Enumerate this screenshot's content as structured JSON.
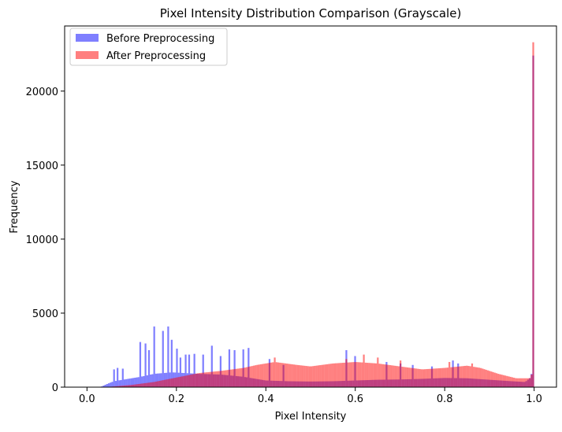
{
  "chart_data": {
    "type": "histogram",
    "title": "Pixel Intensity Distribution Comparison (Grayscale)",
    "xlabel": "Pixel Intensity",
    "ylabel": "Frequency",
    "xlim": [
      -0.05,
      1.05
    ],
    "ylim": [
      0,
      24400
    ],
    "x_ticks": [
      0.0,
      0.2,
      0.4,
      0.6,
      0.8,
      1.0
    ],
    "x_tick_labels": [
      "0.0",
      "0.2",
      "0.4",
      "0.6",
      "0.8",
      "1.0"
    ],
    "y_ticks": [
      0,
      5000,
      10000,
      15000,
      20000
    ],
    "y_tick_labels": [
      "0",
      "5000",
      "10000",
      "15000",
      "20000"
    ],
    "bins": 256,
    "bin_range": [
      0,
      1
    ],
    "legend": {
      "placement": "top-left"
    },
    "grid": false,
    "series": [
      {
        "name": "Before Preprocessing",
        "color": "#0000ff",
        "alpha": 0.5,
        "profile": [
          [
            0.0,
            0
          ],
          [
            0.03,
            0
          ],
          [
            0.04,
            150
          ],
          [
            0.06,
            400
          ],
          [
            0.09,
            550
          ],
          [
            0.12,
            700
          ],
          [
            0.15,
            900
          ],
          [
            0.19,
            1000
          ],
          [
            0.22,
            950
          ],
          [
            0.25,
            900
          ],
          [
            0.3,
            850
          ],
          [
            0.35,
            700
          ],
          [
            0.4,
            450
          ],
          [
            0.45,
            400
          ],
          [
            0.5,
            380
          ],
          [
            0.55,
            400
          ],
          [
            0.6,
            450
          ],
          [
            0.65,
            500
          ],
          [
            0.7,
            520
          ],
          [
            0.75,
            560
          ],
          [
            0.8,
            620
          ],
          [
            0.85,
            600
          ],
          [
            0.9,
            500
          ],
          [
            0.95,
            400
          ],
          [
            0.98,
            350
          ],
          [
            0.992,
            650
          ],
          [
            0.996,
            1100
          ]
        ],
        "spikes": [
          [
            0.06,
            1200
          ],
          [
            0.07,
            1300
          ],
          [
            0.08,
            1250
          ],
          [
            0.12,
            3050
          ],
          [
            0.13,
            2950
          ],
          [
            0.14,
            2500
          ],
          [
            0.15,
            4100
          ],
          [
            0.17,
            3800
          ],
          [
            0.18,
            4100
          ],
          [
            0.19,
            3200
          ],
          [
            0.2,
            2600
          ],
          [
            0.21,
            2000
          ],
          [
            0.22,
            2200
          ],
          [
            0.23,
            2200
          ],
          [
            0.24,
            2250
          ],
          [
            0.26,
            2200
          ],
          [
            0.28,
            2800
          ],
          [
            0.3,
            2100
          ],
          [
            0.32,
            2550
          ],
          [
            0.33,
            2500
          ],
          [
            0.35,
            2550
          ],
          [
            0.36,
            2650
          ],
          [
            0.41,
            1900
          ],
          [
            0.44,
            1500
          ],
          [
            0.58,
            2500
          ],
          [
            0.6,
            2100
          ],
          [
            0.67,
            1700
          ],
          [
            0.7,
            1600
          ],
          [
            0.73,
            1500
          ],
          [
            0.77,
            1400
          ],
          [
            0.82,
            1800
          ],
          [
            0.83,
            1600
          ]
        ],
        "last_bin": 22400
      },
      {
        "name": "After Preprocessing",
        "color": "#ff0000",
        "alpha": 0.5,
        "profile": [
          [
            0.0,
            0
          ],
          [
            0.04,
            0
          ],
          [
            0.06,
            50
          ],
          [
            0.1,
            150
          ],
          [
            0.15,
            350
          ],
          [
            0.2,
            650
          ],
          [
            0.25,
            950
          ],
          [
            0.3,
            1100
          ],
          [
            0.35,
            1300
          ],
          [
            0.38,
            1500
          ],
          [
            0.42,
            1700
          ],
          [
            0.47,
            1500
          ],
          [
            0.5,
            1400
          ],
          [
            0.55,
            1600
          ],
          [
            0.6,
            1700
          ],
          [
            0.65,
            1600
          ],
          [
            0.7,
            1400
          ],
          [
            0.75,
            1200
          ],
          [
            0.8,
            1300
          ],
          [
            0.85,
            1450
          ],
          [
            0.88,
            1300
          ],
          [
            0.92,
            900
          ],
          [
            0.96,
            600
          ],
          [
            0.99,
            600
          ],
          [
            0.995,
            900
          ]
        ],
        "spikes": [
          [
            0.42,
            2000
          ],
          [
            0.58,
            1900
          ],
          [
            0.62,
            2200
          ],
          [
            0.65,
            2000
          ],
          [
            0.7,
            1800
          ],
          [
            0.81,
            1700
          ],
          [
            0.86,
            1600
          ]
        ],
        "last_bin": 23300
      }
    ]
  }
}
